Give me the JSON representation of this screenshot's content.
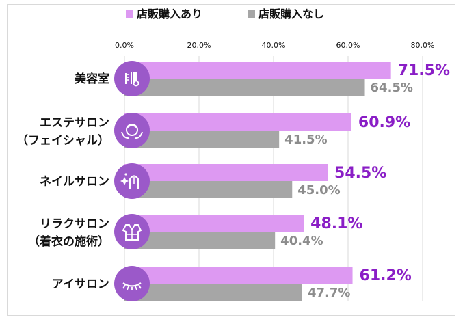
{
  "chart_data": {
    "type": "bar",
    "orientation": "horizontal",
    "title": "",
    "xlabel": "",
    "ylabel": "",
    "xlim": [
      0,
      80
    ],
    "ticks": [
      "0.0%",
      "20.0%",
      "40.0%",
      "60.0%",
      "80.0%"
    ],
    "grid": true,
    "legend_position": "top",
    "categories": [
      [
        "美容室"
      ],
      [
        "エステサロン",
        "（フェイシャル）"
      ],
      [
        "ネイルサロン"
      ],
      [
        "リラクサロン",
        "（着衣の施術）"
      ],
      [
        "アイサロン"
      ]
    ],
    "category_icons": [
      "hairdresser-tools-icon",
      "facial-esthetic-icon",
      "nail-polish-icon",
      "robe-icon",
      "eyelash-icon"
    ],
    "series": [
      {
        "name": "店販購入あり",
        "color": "#dd99f2",
        "label_color": "#8a1ec6",
        "values": [
          71.5,
          60.9,
          54.5,
          48.1,
          61.2
        ],
        "labels": [
          "71.5%",
          "60.9%",
          "54.5%",
          "48.1%",
          "61.2%"
        ]
      },
      {
        "name": "店販購入なし",
        "color": "#a6a6a6",
        "label_color": "#8c8c8c",
        "values": [
          64.5,
          41.5,
          45.0,
          40.4,
          47.7
        ],
        "labels": [
          "64.5%",
          "41.5%",
          "45.0%",
          "40.4%",
          "47.7%"
        ]
      }
    ],
    "icon_circle_color": "#9b59c9"
  }
}
